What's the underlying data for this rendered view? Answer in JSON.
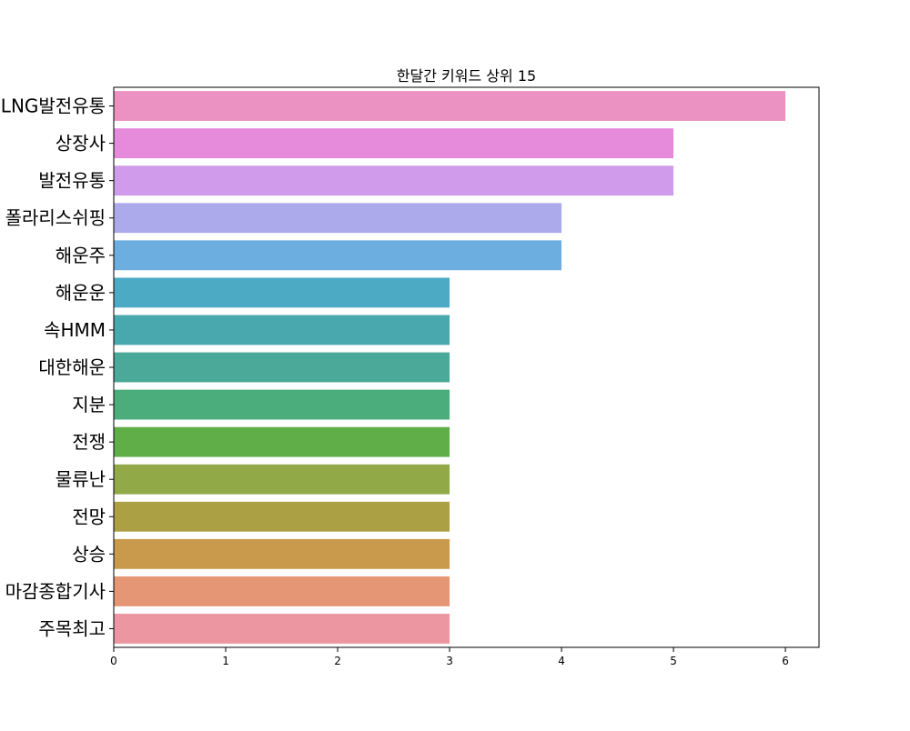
{
  "chart_data": {
    "type": "bar",
    "orientation": "horizontal",
    "title": "한달간 키워드 상위 15",
    "xlabel": "",
    "ylabel": "",
    "xlim": [
      0,
      6.3
    ],
    "x_ticks": [
      0,
      1,
      2,
      3,
      4,
      5,
      6
    ],
    "grid": false,
    "categories": [
      "LNG발전유통",
      "상장사",
      "발전유통",
      "폴라리스쉬핑",
      "해운주",
      "해운운",
      "속HMM",
      "대한해운",
      "지분",
      "전쟁",
      "물류난",
      "전망",
      "상승",
      "마감종합기사",
      "주목최고"
    ],
    "values": [
      6,
      5,
      5,
      4,
      4,
      3,
      3,
      3,
      3,
      3,
      3,
      3,
      3,
      3,
      3
    ],
    "colors": [
      "#ec92c2",
      "#e68adb",
      "#cf9bea",
      "#adaaec",
      "#6caee0",
      "#4caac5",
      "#49a7ae",
      "#4aa998",
      "#4bad7c",
      "#60ae47",
      "#92a948",
      "#aba044",
      "#c99a4b",
      "#e59674",
      "#ec96a1"
    ]
  }
}
